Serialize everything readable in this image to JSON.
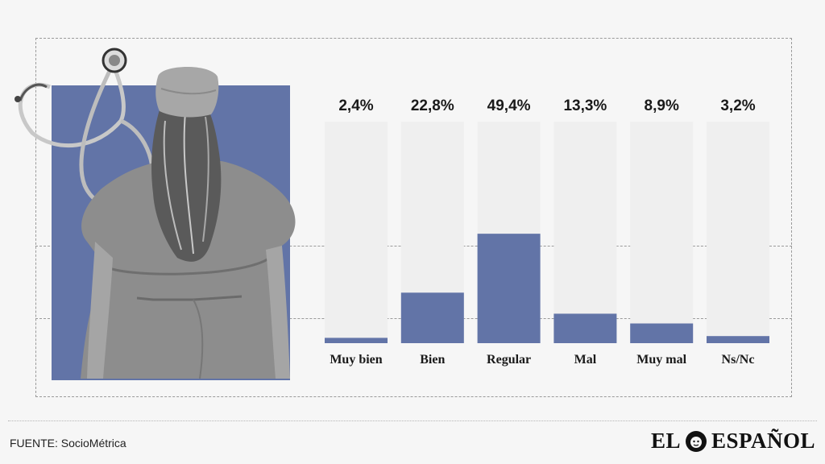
{
  "chart_data": {
    "type": "bar",
    "categories": [
      "Muy bien",
      "Bien",
      "Regular",
      "Mal",
      "Muy mal",
      "Ns/Nc"
    ],
    "values": [
      2.4,
      22.8,
      49.4,
      13.3,
      8.9,
      3.2
    ],
    "value_labels": [
      "2,4%",
      "22,8%",
      "49,4%",
      "13,3%",
      "8,9%",
      "3,2%"
    ],
    "ylim": [
      0,
      100
    ],
    "title": "",
    "xlabel": "",
    "ylabel": "",
    "grid": false,
    "colors": {
      "bar": "#6274a7",
      "track": "#efefef",
      "background": "#f6f6f6"
    }
  },
  "source": "FUENTE: SocioMétrica",
  "logo": {
    "left": "EL",
    "right": "ESPAÑOL"
  }
}
